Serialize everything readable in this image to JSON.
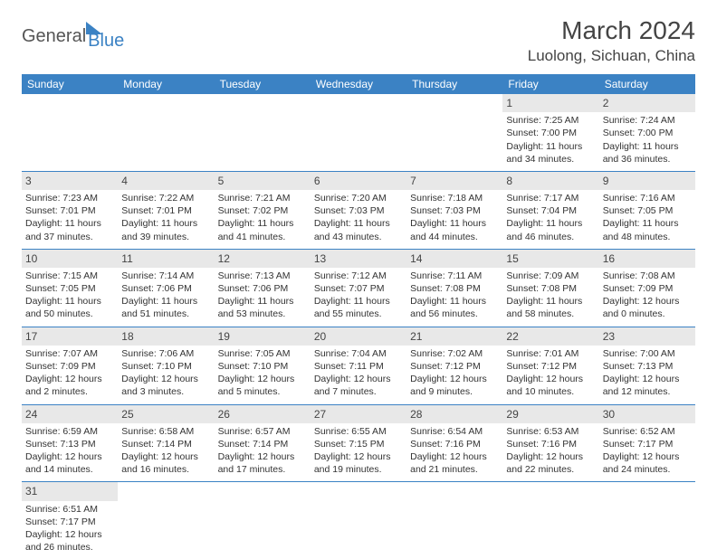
{
  "logo": {
    "part1": "General",
    "part2": "Blue"
  },
  "title": "March 2024",
  "location": "Luolong, Sichuan, China",
  "colors": {
    "accent": "#3b82c4",
    "daybar": "#e8e8e8",
    "text": "#333333",
    "bg": "#ffffff"
  },
  "weekdays": [
    "Sunday",
    "Monday",
    "Tuesday",
    "Wednesday",
    "Thursday",
    "Friday",
    "Saturday"
  ],
  "weeks": [
    [
      null,
      null,
      null,
      null,
      null,
      {
        "n": "1",
        "sr": "Sunrise: 7:25 AM",
        "ss": "Sunset: 7:00 PM",
        "dl": "Daylight: 11 hours and 34 minutes."
      },
      {
        "n": "2",
        "sr": "Sunrise: 7:24 AM",
        "ss": "Sunset: 7:00 PM",
        "dl": "Daylight: 11 hours and 36 minutes."
      }
    ],
    [
      {
        "n": "3",
        "sr": "Sunrise: 7:23 AM",
        "ss": "Sunset: 7:01 PM",
        "dl": "Daylight: 11 hours and 37 minutes."
      },
      {
        "n": "4",
        "sr": "Sunrise: 7:22 AM",
        "ss": "Sunset: 7:01 PM",
        "dl": "Daylight: 11 hours and 39 minutes."
      },
      {
        "n": "5",
        "sr": "Sunrise: 7:21 AM",
        "ss": "Sunset: 7:02 PM",
        "dl": "Daylight: 11 hours and 41 minutes."
      },
      {
        "n": "6",
        "sr": "Sunrise: 7:20 AM",
        "ss": "Sunset: 7:03 PM",
        "dl": "Daylight: 11 hours and 43 minutes."
      },
      {
        "n": "7",
        "sr": "Sunrise: 7:18 AM",
        "ss": "Sunset: 7:03 PM",
        "dl": "Daylight: 11 hours and 44 minutes."
      },
      {
        "n": "8",
        "sr": "Sunrise: 7:17 AM",
        "ss": "Sunset: 7:04 PM",
        "dl": "Daylight: 11 hours and 46 minutes."
      },
      {
        "n": "9",
        "sr": "Sunrise: 7:16 AM",
        "ss": "Sunset: 7:05 PM",
        "dl": "Daylight: 11 hours and 48 minutes."
      }
    ],
    [
      {
        "n": "10",
        "sr": "Sunrise: 7:15 AM",
        "ss": "Sunset: 7:05 PM",
        "dl": "Daylight: 11 hours and 50 minutes."
      },
      {
        "n": "11",
        "sr": "Sunrise: 7:14 AM",
        "ss": "Sunset: 7:06 PM",
        "dl": "Daylight: 11 hours and 51 minutes."
      },
      {
        "n": "12",
        "sr": "Sunrise: 7:13 AM",
        "ss": "Sunset: 7:06 PM",
        "dl": "Daylight: 11 hours and 53 minutes."
      },
      {
        "n": "13",
        "sr": "Sunrise: 7:12 AM",
        "ss": "Sunset: 7:07 PM",
        "dl": "Daylight: 11 hours and 55 minutes."
      },
      {
        "n": "14",
        "sr": "Sunrise: 7:11 AM",
        "ss": "Sunset: 7:08 PM",
        "dl": "Daylight: 11 hours and 56 minutes."
      },
      {
        "n": "15",
        "sr": "Sunrise: 7:09 AM",
        "ss": "Sunset: 7:08 PM",
        "dl": "Daylight: 11 hours and 58 minutes."
      },
      {
        "n": "16",
        "sr": "Sunrise: 7:08 AM",
        "ss": "Sunset: 7:09 PM",
        "dl": "Daylight: 12 hours and 0 minutes."
      }
    ],
    [
      {
        "n": "17",
        "sr": "Sunrise: 7:07 AM",
        "ss": "Sunset: 7:09 PM",
        "dl": "Daylight: 12 hours and 2 minutes."
      },
      {
        "n": "18",
        "sr": "Sunrise: 7:06 AM",
        "ss": "Sunset: 7:10 PM",
        "dl": "Daylight: 12 hours and 3 minutes."
      },
      {
        "n": "19",
        "sr": "Sunrise: 7:05 AM",
        "ss": "Sunset: 7:10 PM",
        "dl": "Daylight: 12 hours and 5 minutes."
      },
      {
        "n": "20",
        "sr": "Sunrise: 7:04 AM",
        "ss": "Sunset: 7:11 PM",
        "dl": "Daylight: 12 hours and 7 minutes."
      },
      {
        "n": "21",
        "sr": "Sunrise: 7:02 AM",
        "ss": "Sunset: 7:12 PM",
        "dl": "Daylight: 12 hours and 9 minutes."
      },
      {
        "n": "22",
        "sr": "Sunrise: 7:01 AM",
        "ss": "Sunset: 7:12 PM",
        "dl": "Daylight: 12 hours and 10 minutes."
      },
      {
        "n": "23",
        "sr": "Sunrise: 7:00 AM",
        "ss": "Sunset: 7:13 PM",
        "dl": "Daylight: 12 hours and 12 minutes."
      }
    ],
    [
      {
        "n": "24",
        "sr": "Sunrise: 6:59 AM",
        "ss": "Sunset: 7:13 PM",
        "dl": "Daylight: 12 hours and 14 minutes."
      },
      {
        "n": "25",
        "sr": "Sunrise: 6:58 AM",
        "ss": "Sunset: 7:14 PM",
        "dl": "Daylight: 12 hours and 16 minutes."
      },
      {
        "n": "26",
        "sr": "Sunrise: 6:57 AM",
        "ss": "Sunset: 7:14 PM",
        "dl": "Daylight: 12 hours and 17 minutes."
      },
      {
        "n": "27",
        "sr": "Sunrise: 6:55 AM",
        "ss": "Sunset: 7:15 PM",
        "dl": "Daylight: 12 hours and 19 minutes."
      },
      {
        "n": "28",
        "sr": "Sunrise: 6:54 AM",
        "ss": "Sunset: 7:16 PM",
        "dl": "Daylight: 12 hours and 21 minutes."
      },
      {
        "n": "29",
        "sr": "Sunrise: 6:53 AM",
        "ss": "Sunset: 7:16 PM",
        "dl": "Daylight: 12 hours and 22 minutes."
      },
      {
        "n": "30",
        "sr": "Sunrise: 6:52 AM",
        "ss": "Sunset: 7:17 PM",
        "dl": "Daylight: 12 hours and 24 minutes."
      }
    ],
    [
      {
        "n": "31",
        "sr": "Sunrise: 6:51 AM",
        "ss": "Sunset: 7:17 PM",
        "dl": "Daylight: 12 hours and 26 minutes."
      },
      null,
      null,
      null,
      null,
      null,
      null
    ]
  ]
}
